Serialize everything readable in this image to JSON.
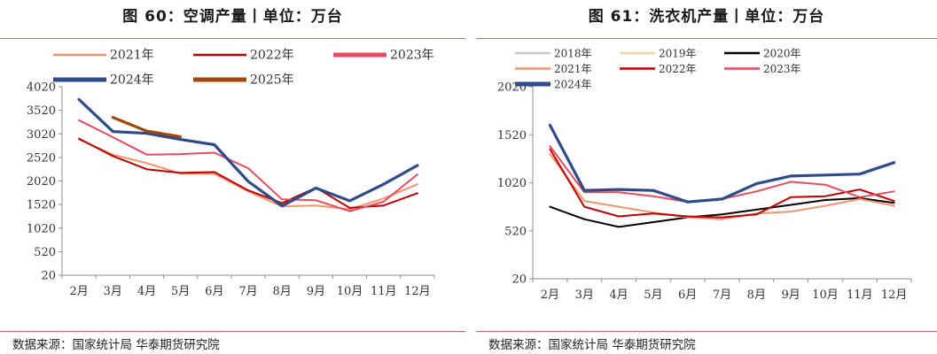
{
  "left_panel": {
    "source": "数据来源：国家统计局  华泰期货研究院"
  },
  "right_panel": {
    "source": "数据来源：国家统计局  华泰期货研究院"
  },
  "chart_data": [
    {
      "type": "line",
      "title": "图 60：空调产量丨单位：万台",
      "categories": [
        "2月",
        "3月",
        "4月",
        "5月",
        "6月",
        "7月",
        "8月",
        "9月",
        "10月",
        "11月",
        "12月"
      ],
      "ylim": [
        20,
        4020
      ],
      "yticks": [
        "4020",
        "3520",
        "3020",
        "2520",
        "2020",
        "1520",
        "1020",
        "520",
        "20"
      ],
      "series": [
        {
          "name": "2021年",
          "color": "#f0956c",
          "values": [
            2900,
            2580,
            2400,
            2180,
            2170,
            1800,
            1480,
            1500,
            1420,
            1650,
            1950
          ]
        },
        {
          "name": "2022年",
          "color": "#c00000",
          "values": [
            2920,
            2550,
            2270,
            2190,
            2210,
            1820,
            1550,
            1880,
            1450,
            1500,
            1760
          ]
        },
        {
          "name": "2023年",
          "color": "#e84a5f",
          "values": [
            3310,
            2950,
            2580,
            2590,
            2620,
            2290,
            1630,
            1610,
            1380,
            1580,
            2160
          ]
        },
        {
          "name": "2024年",
          "color": "#2f4b8a",
          "values": [
            3750,
            3070,
            3030,
            2900,
            2790,
            2010,
            1490,
            1870,
            1600,
            1950,
            2350
          ]
        },
        {
          "name": "2025年",
          "color": "#9e480e",
          "values": [
            null,
            3370,
            3080,
            2960,
            null,
            null,
            null,
            null,
            null,
            null,
            null
          ]
        }
      ]
    },
    {
      "type": "line",
      "title": "图 61：洗衣机产量丨单位：万台",
      "categories": [
        "2月",
        "3月",
        "4月",
        "5月",
        "6月",
        "7月",
        "8月",
        "9月",
        "10月",
        "11月",
        "12月"
      ],
      "ylim": [
        20,
        2020
      ],
      "yticks": [
        "2020",
        "1520",
        "1020",
        "520",
        "20"
      ],
      "series": [
        {
          "name": "2018年",
          "color": "#c7c7c7",
          "values": [
            null,
            null,
            null,
            null,
            null,
            null,
            null,
            null,
            null,
            null,
            null
          ]
        },
        {
          "name": "2019年",
          "color": "#f9cfa8",
          "values": [
            null,
            null,
            null,
            null,
            null,
            null,
            null,
            null,
            null,
            null,
            null
          ]
        },
        {
          "name": "2020年",
          "color": "#000000",
          "values": [
            770,
            640,
            560,
            610,
            660,
            690,
            740,
            790,
            840,
            860,
            810
          ]
        },
        {
          "name": "2021年",
          "color": "#f0956c",
          "values": [
            1320,
            830,
            770,
            710,
            660,
            640,
            700,
            720,
            780,
            850,
            780
          ]
        },
        {
          "name": "2022年",
          "color": "#c00000",
          "values": [
            1370,
            770,
            670,
            700,
            670,
            660,
            690,
            870,
            880,
            950,
            830
          ]
        },
        {
          "name": "2023年",
          "color": "#e84a5f",
          "values": [
            1400,
            920,
            920,
            880,
            820,
            850,
            930,
            1030,
            1000,
            870,
            930
          ]
        },
        {
          "name": "2024年",
          "color": "#2f4b8a",
          "values": [
            1620,
            940,
            950,
            940,
            820,
            850,
            1010,
            1090,
            1100,
            1110,
            1230
          ]
        }
      ]
    }
  ]
}
